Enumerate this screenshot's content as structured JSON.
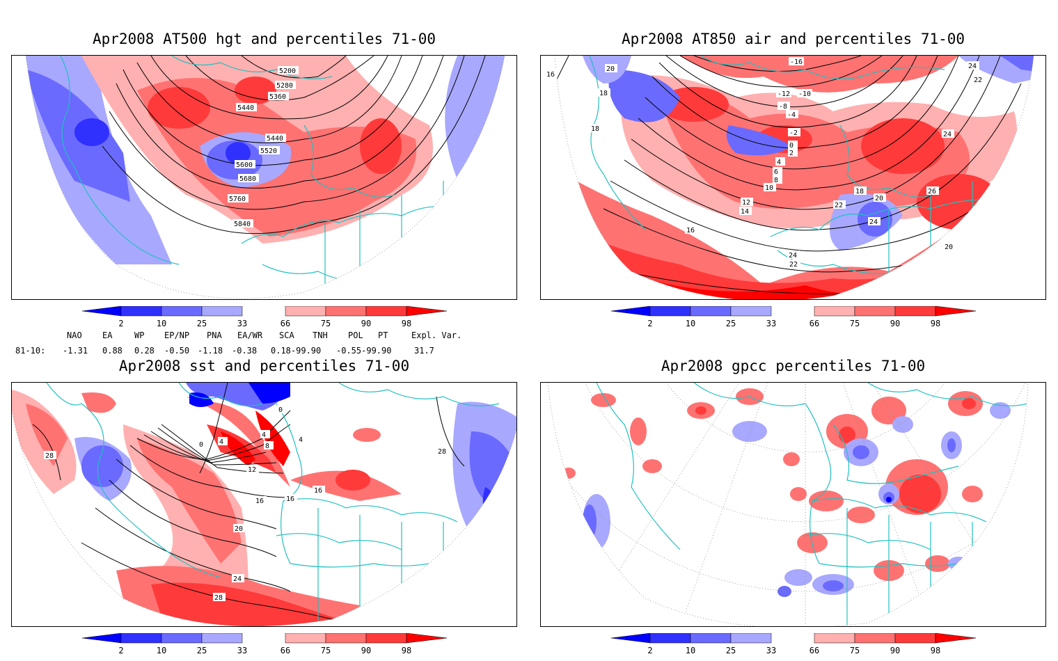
{
  "panels": [
    {
      "title": "Apr2008 AT500 hgt and percentiles 71-00",
      "contour_labels": [
        "5200",
        "5280",
        "5360",
        "5440",
        "5440",
        "5520",
        "5600",
        "5680",
        "5760",
        "5840"
      ]
    },
    {
      "title": "Apr2008 AT850 air and percentiles 71-00",
      "contour_labels": [
        "-16",
        "-12",
        "-10",
        "-8",
        "-4",
        "-2",
        "0",
        "2",
        "4",
        "6",
        "8",
        "10",
        "12",
        "14",
        "16",
        "16",
        "18",
        "18",
        "18",
        "20",
        "20",
        "20",
        "22",
        "22",
        "22",
        "24",
        "24",
        "24",
        "24",
        "26"
      ]
    },
    {
      "title": "Apr2008 sst and percentiles 71-00",
      "contour_labels": [
        "0",
        "0",
        "4",
        "4",
        "4",
        "8",
        "12",
        "16",
        "16",
        "16",
        "20",
        "24",
        "28",
        "28",
        "28"
      ]
    },
    {
      "title": "Apr2008 gpcc percentiles 71-00",
      "contour_labels": []
    }
  ],
  "colorbar": {
    "labels": [
      "2",
      "10",
      "25",
      "33",
      "66",
      "75",
      "90",
      "98"
    ],
    "colors": {
      "b98": "#0000ff",
      "b90": "#3030ff",
      "b75": "#6a6aff",
      "b66": "#a8a8ff",
      "r66": "#ffb0b0",
      "r75": "#ff7272",
      "r90": "#ff3a3a",
      "r98": "#ff0000"
    }
  },
  "indices": {
    "header": [
      "NAO",
      "EA",
      "WP",
      "EP/NP",
      "PNA",
      "EA/WR",
      "SCA",
      "TNH",
      "POL",
      "PT",
      "Expl. Var."
    ],
    "row_label": "81-10:",
    "values": [
      "-1.31",
      "0.88",
      "0.28",
      "-0.50",
      "-1.18",
      "-0.38",
      "0.18-99.90",
      "-0.55-99.90",
      "31.7"
    ]
  },
  "map_colors": {
    "coast": "#20c0c0",
    "contour": "#000000"
  }
}
